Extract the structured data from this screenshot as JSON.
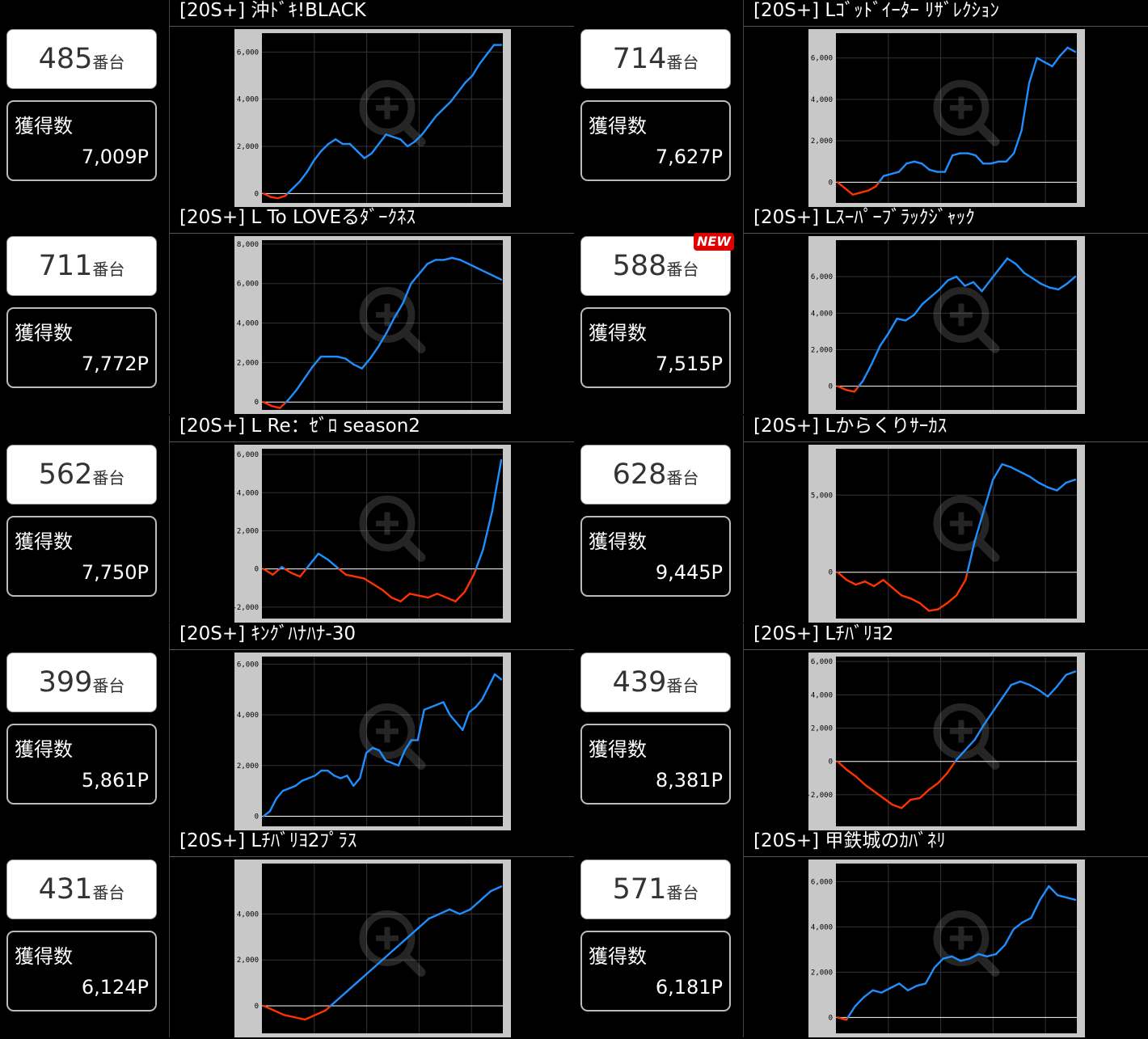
{
  "entries": [
    {
      "title": "[20S+] 沖ﾄﾞｷ!BLACK",
      "machine": "485",
      "suffix": "番台",
      "earn_label": "獲得数",
      "earn_value": "7,009P",
      "chart_data": {
        "type": "line",
        "ylim": [
          -400,
          6800
        ],
        "ticks": [
          0,
          2000,
          4000,
          6000
        ],
        "tick_labels": [
          "0",
          "2,000",
          "4,000",
          "6,000"
        ],
        "y": [
          0,
          -150,
          -200,
          -100,
          200,
          500,
          900,
          1400,
          1800,
          2100,
          2300,
          2100,
          2100,
          1800,
          1500,
          1700,
          2100,
          2500,
          2400,
          2300,
          2000,
          2200,
          2500,
          2900,
          3300,
          3600,
          3900,
          4300,
          4700,
          5000,
          5500,
          5900,
          6300,
          6300
        ]
      }
    },
    {
      "title": "[20S+] Lｺﾞｯﾄﾞｲｰﾀｰ ﾘｻﾞﾚｸｼｮﾝ",
      "machine": "714",
      "suffix": "番台",
      "earn_label": "獲得数",
      "earn_value": "7,627P",
      "chart_data": {
        "type": "line",
        "ylim": [
          -1000,
          7200
        ],
        "ticks": [
          0,
          2000,
          4000,
          6000
        ],
        "tick_labels": [
          "0",
          "2,000",
          "4,000",
          "6,000"
        ],
        "y": [
          0,
          -300,
          -600,
          -500,
          -400,
          -200,
          300,
          400,
          500,
          900,
          1000,
          900,
          600,
          500,
          500,
          1300,
          1400,
          1400,
          1300,
          900,
          900,
          1000,
          1000,
          1400,
          2500,
          4800,
          6000,
          5800,
          5600,
          6100,
          6500,
          6300
        ]
      }
    },
    {
      "title": "[20S+] L To LOVEるﾀﾞｰｸﾈｽ",
      "machine": "711",
      "suffix": "番台",
      "earn_label": "獲得数",
      "earn_value": "7,772P",
      "chart_data": {
        "type": "line",
        "ylim": [
          -400,
          8200
        ],
        "ticks": [
          0,
          2000,
          4000,
          6000,
          8000
        ],
        "tick_labels": [
          "0",
          "2,000",
          "4,000",
          "6,000",
          "8,000"
        ],
        "y": [
          0,
          -200,
          -300,
          100,
          600,
          1200,
          1800,
          2300,
          2300,
          2300,
          2200,
          1900,
          1700,
          2200,
          2800,
          3500,
          4300,
          5000,
          6000,
          6500,
          7000,
          7200,
          7200,
          7300,
          7200,
          7000,
          6800,
          6600,
          6400,
          6200
        ]
      }
    },
    {
      "title": "[20S+] Lｽｰﾊﾟｰﾌﾞﾗｯｸｼﾞｬｯｸ",
      "machine": "588",
      "suffix": "番台",
      "earn_label": "獲得数",
      "earn_value": "7,515P",
      "new": "NEW",
      "chart_data": {
        "type": "line",
        "ylim": [
          -1300,
          8000
        ],
        "ticks": [
          0,
          2000,
          4000,
          6000
        ],
        "tick_labels": [
          "0",
          "2,000",
          "4,000",
          "6,000"
        ],
        "y": [
          0,
          -200,
          -300,
          300,
          1200,
          2200,
          2900,
          3700,
          3600,
          3900,
          4500,
          4900,
          5300,
          5800,
          6000,
          5500,
          5700,
          5200,
          5800,
          6400,
          7000,
          6700,
          6200,
          5900,
          5600,
          5400,
          5300,
          5600,
          6000
        ]
      }
    },
    {
      "title": "[20S+] L Re：ｾﾞﾛ season2",
      "machine": "562",
      "suffix": "番台",
      "earn_label": "獲得数",
      "earn_value": "7,750P",
      "chart_data": {
        "type": "line",
        "ylim": [
          -2600,
          6300
        ],
        "ticks": [
          -2000,
          0,
          2000,
          4000,
          6000
        ],
        "tick_labels": [
          "-2,000",
          "0",
          "2,000",
          "4,000",
          "6,000"
        ],
        "y": [
          0,
          -300,
          100,
          -200,
          -400,
          200,
          800,
          500,
          100,
          -300,
          -400,
          -500,
          -800,
          -1100,
          -1500,
          -1700,
          -1300,
          -1400,
          -1500,
          -1300,
          -1500,
          -1700,
          -1200,
          -300,
          1000,
          3000,
          5700
        ]
      }
    },
    {
      "title": "[20S+] Lからくりｻｰｶｽ",
      "machine": "628",
      "suffix": "番台",
      "earn_label": "獲得数",
      "earn_value": "9,445P",
      "chart_data": {
        "type": "line",
        "ylim": [
          -3000,
          8000
        ],
        "ticks": [
          0,
          5000
        ],
        "tick_labels": [
          "0",
          "5,000"
        ],
        "y": [
          0,
          -500,
          -800,
          -600,
          -900,
          -500,
          -1000,
          -1500,
          -1700,
          -2000,
          -2500,
          -2400,
          -2000,
          -1500,
          -500,
          2000,
          4000,
          6000,
          7000,
          6800,
          6500,
          6200,
          5800,
          5500,
          5300,
          5800,
          6000
        ]
      }
    },
    {
      "title": "[20S+] ｷﾝｸﾞﾊﾅﾊﾅ-30",
      "machine": "399",
      "suffix": "番台",
      "earn_label": "獲得数",
      "earn_value": "5,861P",
      "chart_data": {
        "type": "line",
        "ylim": [
          -400,
          6300
        ],
        "ticks": [
          0,
          2000,
          4000,
          6000
        ],
        "tick_labels": [
          "0",
          "2,000",
          "4,000",
          "6,000"
        ],
        "y": [
          0,
          200,
          700,
          1000,
          1100,
          1200,
          1400,
          1500,
          1600,
          1800,
          1800,
          1600,
          1500,
          1600,
          1200,
          1500,
          2500,
          2700,
          2600,
          2200,
          2100,
          2000,
          2600,
          3000,
          3000,
          4200,
          4300,
          4400,
          4500,
          4000,
          3700,
          3400,
          4100,
          4300,
          4600,
          5100,
          5600,
          5400
        ]
      }
    },
    {
      "title": "[20S+] Lﾁﾊﾞﾘﾖ2",
      "machine": "439",
      "suffix": "番台",
      "earn_label": "獲得数",
      "earn_value": "8,381P",
      "chart_data": {
        "type": "line",
        "ylim": [
          -3900,
          6300
        ],
        "ticks": [
          -2000,
          0,
          2000,
          4000,
          6000
        ],
        "tick_labels": [
          "-2,000",
          "0",
          "2,000",
          "4,000",
          "6,000"
        ],
        "y": [
          0,
          -500,
          -900,
          -1400,
          -1800,
          -2200,
          -2600,
          -2800,
          -2300,
          -2200,
          -1700,
          -1300,
          -700,
          100,
          700,
          1300,
          2200,
          3000,
          3800,
          4600,
          4800,
          4600,
          4300,
          3900,
          4500,
          5200,
          5400
        ]
      }
    },
    {
      "title": "[20S+] Lﾁﾊﾞﾘﾖ2ﾌﾟﾗｽ",
      "machine": "431",
      "suffix": "番台",
      "earn_label": "獲得数",
      "earn_value": "6,124P",
      "chart_data": {
        "type": "line",
        "ylim": [
          -1200,
          6200
        ],
        "ticks": [
          0,
          2000,
          4000
        ],
        "tick_labels": [
          "0",
          "2,000",
          "4,000"
        ],
        "y": [
          0,
          -200,
          -400,
          -500,
          -600,
          -400,
          -200,
          200,
          600,
          1000,
          1400,
          1800,
          2200,
          2600,
          3000,
          3400,
          3800,
          4000,
          4200,
          4000,
          4200,
          4600,
          5000,
          5200
        ]
      }
    },
    {
      "title": "[20S+] 甲鉄城のｶﾊﾞﾈﾘ",
      "machine": "571",
      "suffix": "番台",
      "earn_label": "獲得数",
      "earn_value": "6,181P",
      "chart_data": {
        "type": "line",
        "ylim": [
          -700,
          6800
        ],
        "ticks": [
          0,
          2000,
          4000,
          6000
        ],
        "tick_labels": [
          "0",
          "2,000",
          "4,000",
          "6,000"
        ],
        "y": [
          0,
          -100,
          500,
          900,
          1200,
          1100,
          1300,
          1500,
          1200,
          1400,
          1500,
          2200,
          2600,
          2700,
          2500,
          2600,
          2800,
          2700,
          2800,
          3200,
          3900,
          4200,
          4400,
          5200,
          5800,
          5400,
          5300,
          5200
        ]
      }
    }
  ]
}
